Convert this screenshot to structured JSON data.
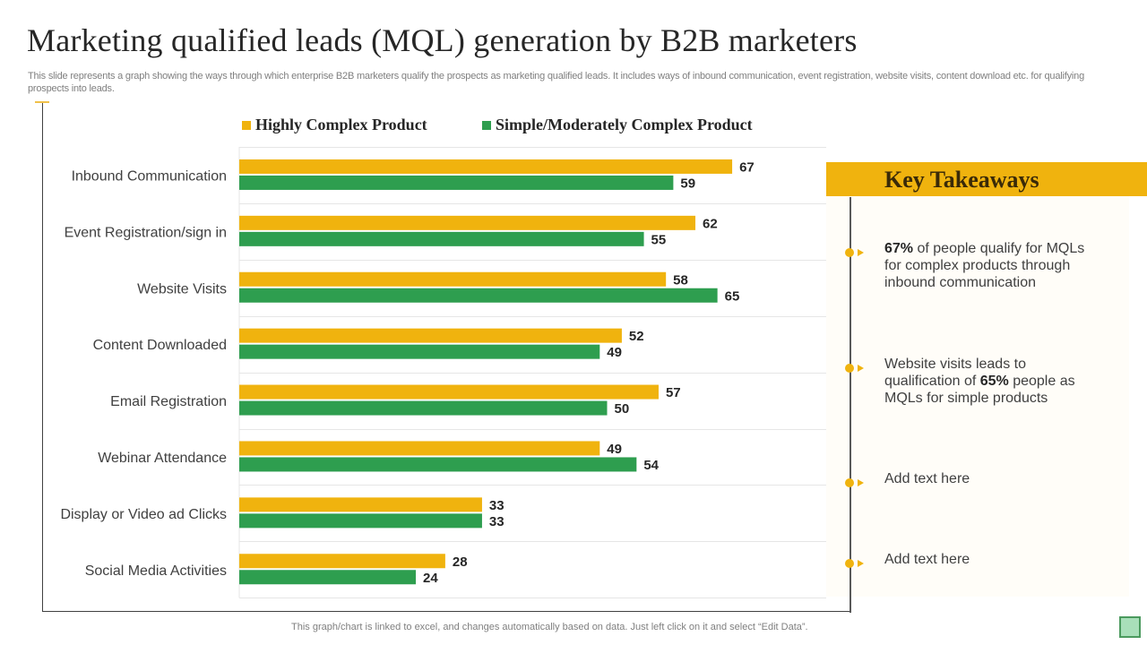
{
  "title": "Marketing qualified leads (MQL) generation by B2B marketers",
  "subtitle": "This slide represents a graph showing the ways through which enterprise B2B marketers qualify the prospects as marketing qualified leads. It includes ways of inbound communication, event registration, website visits, content download etc. for qualifying prospects into leads.",
  "colors": {
    "highly_complex": "#f0b30e",
    "simple": "#2e9e4f",
    "accent": "#f0b30e"
  },
  "chart_data": {
    "type": "bar",
    "orientation": "horizontal",
    "title": "",
    "xlabel": "",
    "ylabel": "",
    "xlim": [
      0,
      80
    ],
    "grid": true,
    "legend_position": "top",
    "categories": [
      "Inbound Communication",
      "Event Registration/sign in",
      "Website Visits",
      "Content Downloaded",
      "Email Registration",
      "Webinar Attendance",
      "Display or Video ad Clicks",
      "Social Media Activities"
    ],
    "series": [
      {
        "name": "Highly Complex Product",
        "color": "#f0b30e",
        "values": [
          67,
          62,
          58,
          52,
          57,
          49,
          33,
          28
        ]
      },
      {
        "name": "Simple/Moderately Complex Product",
        "color": "#2e9e4f",
        "values": [
          59,
          55,
          65,
          49,
          50,
          54,
          33,
          24
        ]
      }
    ]
  },
  "key_takeaways": {
    "title": "Key Takeaways",
    "items": [
      {
        "bold": "67%",
        "before": "",
        "after": " of people qualify for MQLs for complex products through inbound communication"
      },
      {
        "bold": "65%",
        "before": "Website visits leads to qualification of ",
        "after": " people as MQLs for simple products"
      },
      {
        "bold": "",
        "before": "Add text here",
        "after": ""
      },
      {
        "bold": "",
        "before": "Add text here",
        "after": ""
      }
    ]
  },
  "footnote": "This graph/chart is linked to excel,  and changes automatically based on data. Just left click on it and select “Edit Data”."
}
